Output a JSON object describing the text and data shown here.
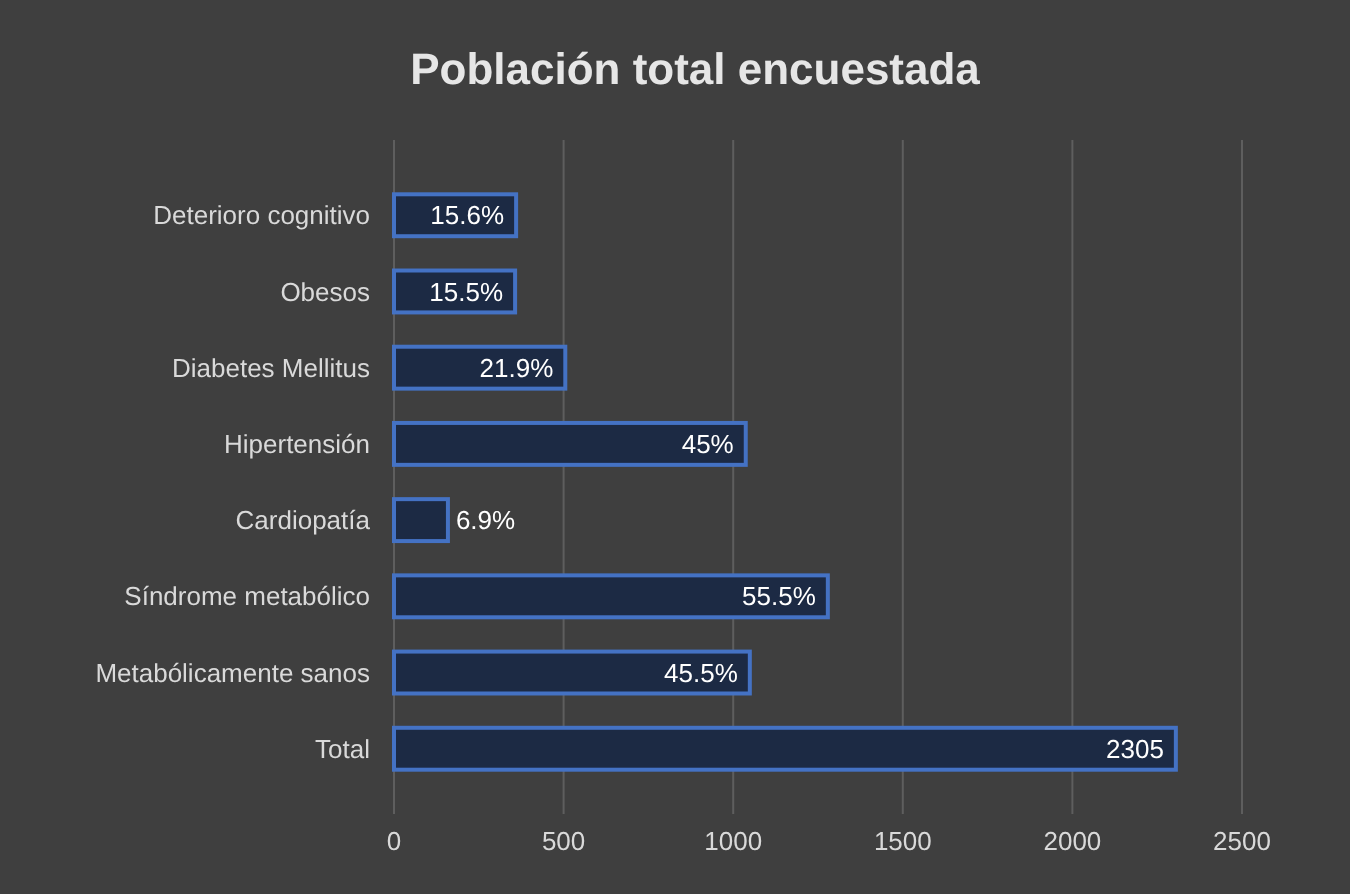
{
  "chart_data": {
    "type": "bar",
    "orientation": "horizontal",
    "title": "Población total encuestada",
    "categories": [
      "Deterioro cognitivo",
      "Obesos",
      "Diabetes Mellitus",
      "Hipertensión",
      "Cardiopatía",
      "Síndrome metabólico",
      "Metabólicamente sanos",
      "Total"
    ],
    "values": [
      360,
      357,
      505,
      1037,
      159,
      1279,
      1049,
      2305
    ],
    "value_labels": [
      null,
      null,
      null,
      null,
      null,
      null,
      null,
      "2305"
    ],
    "annotations": [
      {
        "text": "15.6%",
        "x": 360,
        "y": "Deterioro cognitivo"
      },
      {
        "text": "15.5%",
        "x": 357,
        "y": "Obesos"
      },
      {
        "text": "21.9%",
        "x": 505,
        "y": "Diabetes Mellitus"
      },
      {
        "text": "45%",
        "x": 1037,
        "y": "Hipertensión"
      },
      {
        "text": "6.9%",
        "x": 159,
        "y": "Cardiopatía"
      },
      {
        "text": "55.5%",
        "x": 1279,
        "y": "Síndrome metabólico"
      },
      {
        "text": "45.5%",
        "x": 1049,
        "y": "Metabólicamente sanos"
      }
    ],
    "color": "#4472c4",
    "xlim": [
      0,
      2500
    ],
    "xticks": [
      0,
      500,
      1000,
      1500,
      2000,
      2500
    ],
    "grid": "x"
  }
}
